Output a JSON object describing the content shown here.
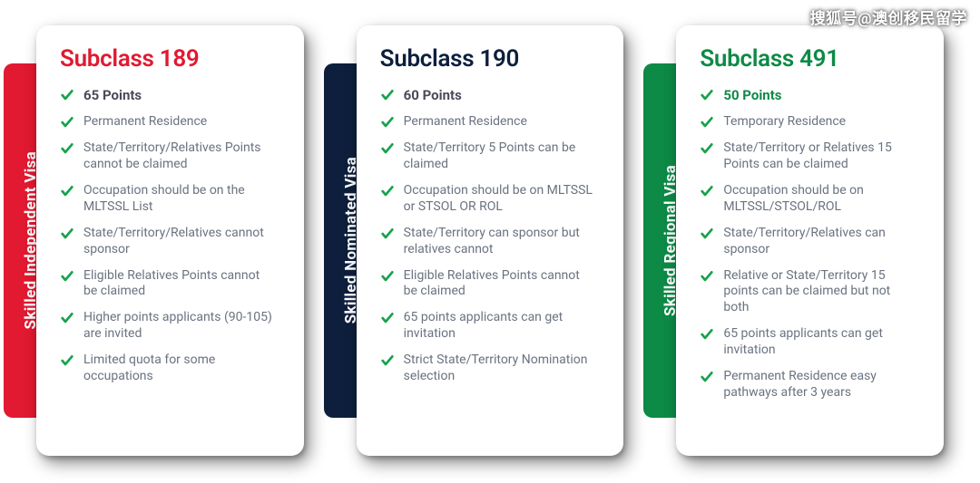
{
  "watermark": "搜狐号@澳创移民留学",
  "cards": [
    {
      "tab_label": "Skilled Independent Visa",
      "tab_color": "#e11931",
      "title": "Subclass 189",
      "title_color": "#e11931",
      "points_text": "65 Points",
      "points_color": "#4a4a5a",
      "check_color": "#16a34a",
      "features": [
        "Permanent Residence",
        "State/Territory/Relatives Points cannot be claimed",
        "Occupation should be on the MLTSSL List",
        "State/Territory/Relatives cannot sponsor",
        "Eligible Relatives Points cannot be claimed",
        "Higher points applicants (90-105) are invited",
        "Limited quota for some occupations"
      ]
    },
    {
      "tab_label": "Skilled Nominated Visa",
      "tab_color": "#0d1f3c",
      "title": "Subclass 190",
      "title_color": "#0d1f3c",
      "points_text": "60 Points",
      "points_color": "#4a4a5a",
      "check_color": "#16a34a",
      "features": [
        "Permanent Residence",
        "State/Territory 5 Points can be claimed",
        "Occupation should be on MLTSSL or STSOL OR ROL",
        "State/Territory can sponsor but relatives cannot",
        "Eligible Relatives Points cannot be claimed",
        "65 points applicants can get invitation",
        "Strict State/Territory Nomination selection"
      ]
    },
    {
      "tab_label": "Skilled Regional Visa",
      "tab_color": "#0d8a46",
      "title": "Subclass 491",
      "title_color": "#0d8a46",
      "points_text": "50 Points",
      "points_color": "#0d8a46",
      "check_color": "#16a34a",
      "features": [
        "Temporary Residence",
        "State/Territory or Relatives 15 Points can be claimed",
        "Occupation should be on MLTSSL/STSOL/ROL",
        "State/Territory/Relatives can sponsor",
        "Relative or State/Territory 15 points can be claimed but not both",
        "65 points applicants can get invitation",
        "Permanent Residence easy pathways after 3 years"
      ]
    }
  ]
}
